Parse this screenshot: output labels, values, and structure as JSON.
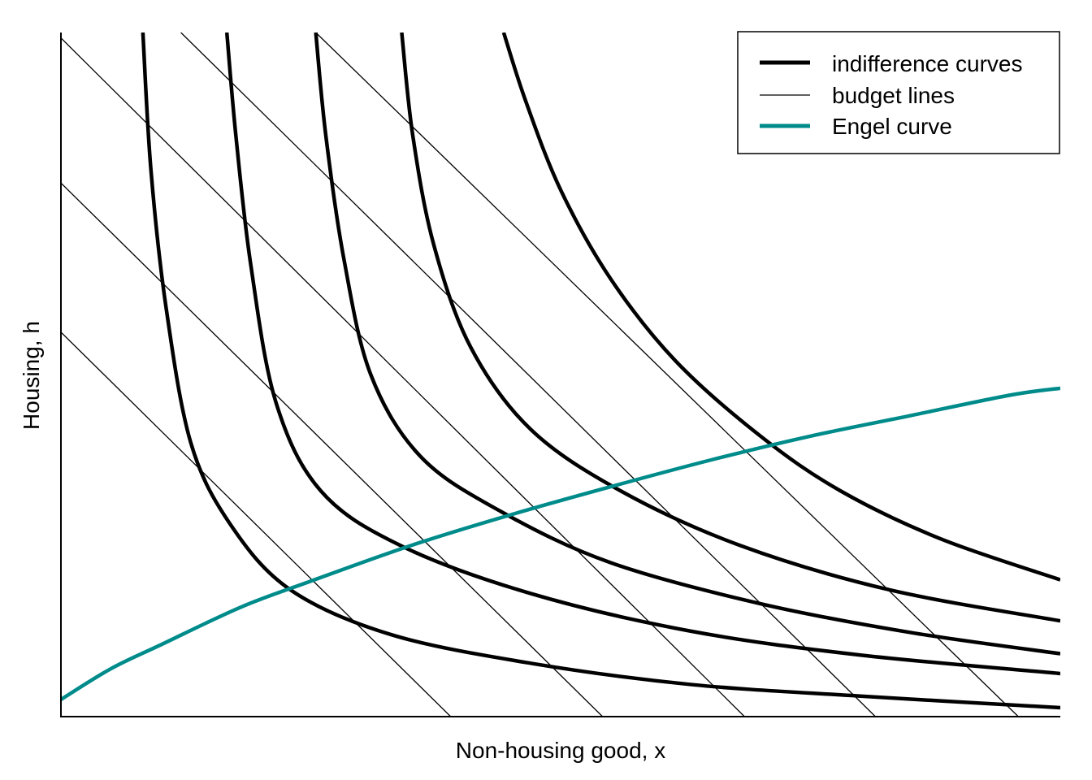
{
  "chart_data": {
    "type": "line",
    "title": "",
    "xlabel": "Non-housing good, x",
    "ylabel": "Housing, h",
    "xlim": [
      0,
      1
    ],
    "ylim": [
      0,
      1
    ],
    "axis_tick_labels": false,
    "grid": false,
    "legend": {
      "placement": "top-right",
      "entries": [
        {
          "label": "indifference curves",
          "style": "thick",
          "color": "#000000"
        },
        {
          "label": "budget lines",
          "style": "thin",
          "color": "#000000"
        },
        {
          "label": "Engel curve",
          "style": "thick",
          "color": "#008b8b"
        }
      ]
    },
    "series": [
      {
        "group": "indifference curves",
        "color": "#000000",
        "x": [
          0.082,
          0.09,
          0.105,
          0.13,
          0.17,
          0.23,
          0.33,
          0.47,
          0.63,
          0.8,
          1.0
        ],
        "y": [
          1.0,
          0.8,
          0.6,
          0.4,
          0.28,
          0.185,
          0.12,
          0.078,
          0.047,
          0.03,
          0.013
        ]
      },
      {
        "group": "indifference curves",
        "color": "#000000",
        "x": [
          0.166,
          0.175,
          0.19,
          0.215,
          0.26,
          0.34,
          0.47,
          0.63,
          0.8,
          1.0
        ],
        "y": [
          1.0,
          0.85,
          0.66,
          0.46,
          0.33,
          0.25,
          0.18,
          0.125,
          0.09,
          0.063
        ]
      },
      {
        "group": "indifference curves",
        "color": "#000000",
        "x": [
          0.255,
          0.265,
          0.283,
          0.31,
          0.36,
          0.44,
          0.55,
          0.7,
          0.85,
          1.0
        ],
        "y": [
          1.0,
          0.85,
          0.67,
          0.5,
          0.38,
          0.3,
          0.225,
          0.165,
          0.123,
          0.092
        ]
      },
      {
        "group": "indifference curves",
        "color": "#000000",
        "x": [
          0.341,
          0.352,
          0.373,
          0.41,
          0.47,
          0.56,
          0.68,
          0.83,
          1.0
        ],
        "y": [
          1.0,
          0.85,
          0.69,
          0.54,
          0.42,
          0.33,
          0.25,
          0.185,
          0.14
        ]
      },
      {
        "group": "indifference curves",
        "color": "#000000",
        "x": [
          0.443,
          0.465,
          0.5,
          0.55,
          0.615,
          0.7,
          0.78,
          0.88,
          1.0
        ],
        "y": [
          1.0,
          0.9,
          0.77,
          0.64,
          0.52,
          0.41,
          0.33,
          0.26,
          0.2
        ]
      },
      {
        "group": "budget lines",
        "color": "#000000",
        "x": [
          0.0,
          0.39
        ],
        "y": [
          0.562,
          0.0
        ]
      },
      {
        "group": "budget lines",
        "color": "#000000",
        "x": [
          0.0,
          0.542
        ],
        "y": [
          0.78,
          0.0
        ]
      },
      {
        "group": "budget lines",
        "color": "#000000",
        "x": [
          0.0,
          0.684
        ],
        "y": [
          0.992,
          0.0
        ]
      },
      {
        "group": "budget lines",
        "color": "#000000",
        "x": [
          0.12,
          0.815
        ],
        "y": [
          1.0,
          0.0
        ]
      },
      {
        "group": "budget lines",
        "color": "#000000",
        "x": [
          0.255,
          0.958
        ],
        "y": [
          1.0,
          0.0
        ]
      },
      {
        "group": "engel curve",
        "color": "#008b8b",
        "x": [
          0.0,
          0.05,
          0.1,
          0.18,
          0.25,
          0.35,
          0.45,
          0.55,
          0.65,
          0.75,
          0.85,
          0.95,
          1.0
        ],
        "y": [
          0.025,
          0.07,
          0.105,
          0.16,
          0.198,
          0.25,
          0.295,
          0.336,
          0.375,
          0.41,
          0.44,
          0.47,
          0.48
        ]
      }
    ]
  }
}
